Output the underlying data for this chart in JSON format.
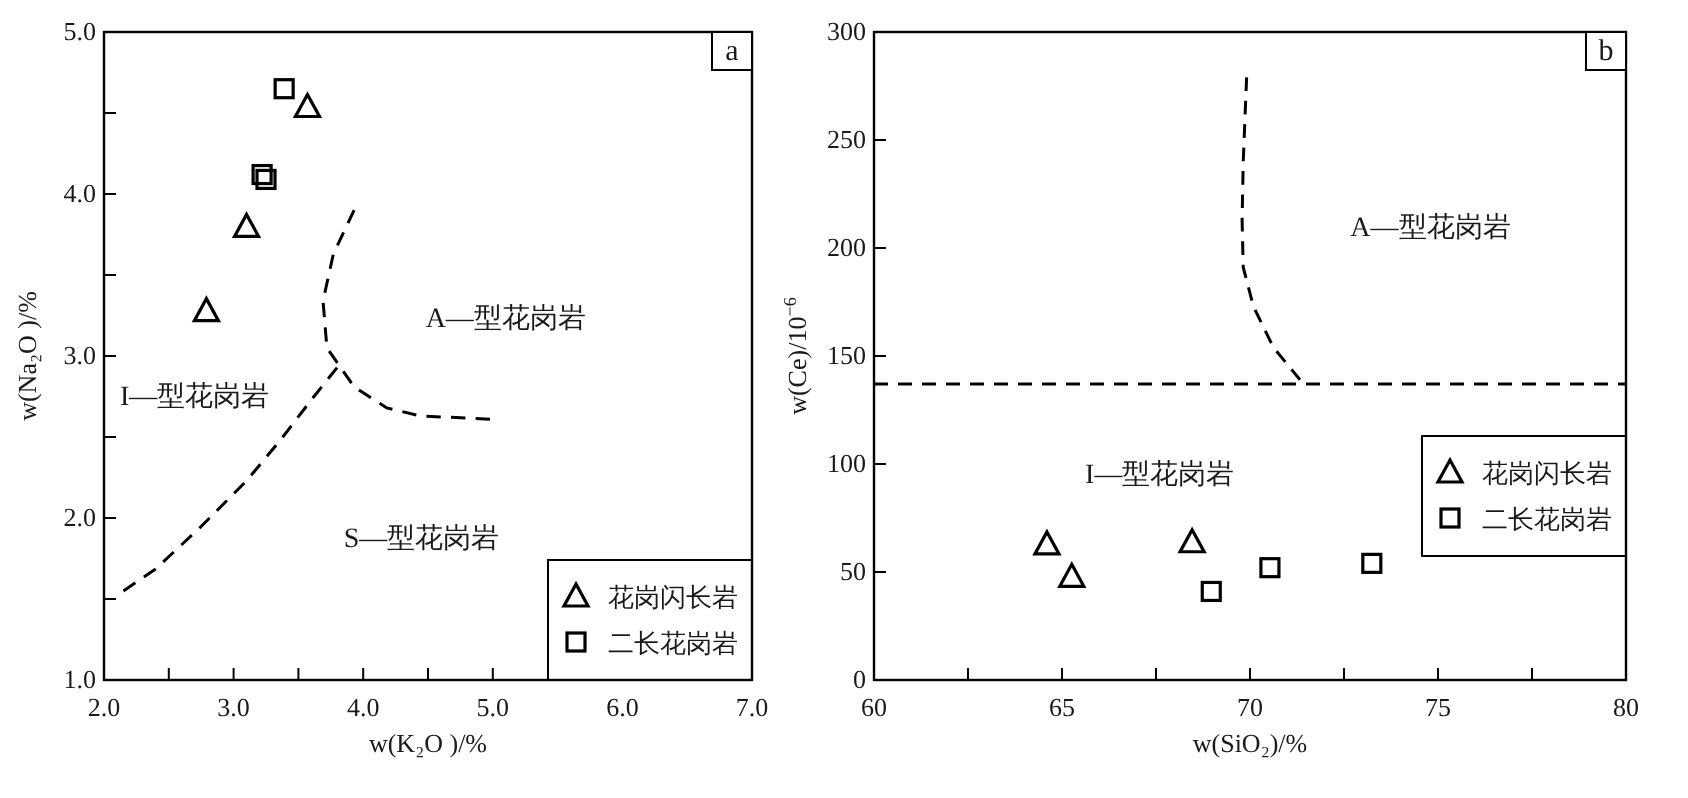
{
  "chart_data": [
    {
      "type": "scatter",
      "title": "a",
      "xlabel": "w(K₂O )/%",
      "ylabel": "w(Na₂O )/%",
      "xlim": [
        2.0,
        7.0
      ],
      "ylim": [
        1.0,
        5.0
      ],
      "xticks": [
        {
          "value": 2,
          "label": "2.0"
        },
        {
          "value": 2.5,
          "label": null
        },
        {
          "value": 3,
          "label": "3.0"
        },
        {
          "value": 3.5,
          "label": null
        },
        {
          "value": 4,
          "label": "4.0"
        },
        {
          "value": 4.5,
          "label": null
        },
        {
          "value": 5,
          "label": "5.0"
        },
        {
          "value": 5.5,
          "label": null
        },
        {
          "value": 6,
          "label": "6.0"
        },
        {
          "value": 6.5,
          "label": null
        },
        {
          "value": 7,
          "label": "7.0"
        }
      ],
      "yticks": [
        {
          "value": 1,
          "label": "1.0"
        },
        {
          "value": 1.5,
          "label": null
        },
        {
          "value": 2,
          "label": "2.0"
        },
        {
          "value": 2.5,
          "label": null
        },
        {
          "value": 3,
          "label": "3.0"
        },
        {
          "value": 3.5,
          "label": null
        },
        {
          "value": 4,
          "label": "4.0"
        },
        {
          "value": 4.5,
          "label": null
        },
        {
          "value": 5,
          "label": "5.0"
        }
      ],
      "legend": "bottom right",
      "series": [
        {
          "name": "花岗闪长岩",
          "type": "scatter",
          "marker": "triangle",
          "color": "#000000",
          "x": [
            2.79,
            3.1,
            3.57
          ],
          "values": [
            3.28,
            3.8,
            4.54
          ]
        },
        {
          "name": "二长花岗岩",
          "type": "scatter",
          "marker": "square",
          "color": "#000000",
          "x": [
            3.39,
            3.22,
            3.25
          ],
          "values": [
            4.65,
            4.12,
            4.09
          ]
        },
        {
          "type": "line",
          "line_style": "dashed",
          "color": "#000000",
          "x": [
            2.15,
            2.39,
            2.74,
            3.1,
            3.36,
            3.62,
            3.8
          ],
          "values": [
            1.55,
            1.68,
            1.94,
            2.23,
            2.48,
            2.75,
            2.93
          ]
        },
        {
          "type": "line",
          "line_style": "dashed",
          "color": "#000000",
          "x": [
            3.93,
            3.77,
            3.69,
            3.72,
            3.93,
            4.18,
            4.44,
            4.98
          ],
          "values": [
            3.9,
            3.63,
            3.34,
            3.05,
            2.81,
            2.68,
            2.63,
            2.61
          ]
        }
      ],
      "annotations": [
        "A—型花岗岩",
        "I—型花岗岩",
        "S—型花岗岩"
      ]
    },
    {
      "type": "scatter",
      "title": "b",
      "xlabel": "w(SiO₂)/%",
      "ylabel": "w(Ce)/10$^{−6}$",
      "xlim": [
        60,
        80
      ],
      "ylim": [
        0,
        300
      ],
      "xticks": [
        60,
        {
          "value": 62.5,
          "label": null
        },
        65,
        {
          "value": 67.5,
          "label": null
        },
        70,
        {
          "value": 72.5,
          "label": null
        },
        75,
        {
          "value": 77.5,
          "label": null
        },
        80
      ],
      "yticks": [
        0,
        50,
        100,
        150,
        200,
        250,
        300
      ],
      "legend": "right",
      "series": [
        {
          "name": "花岗闪长岩",
          "type": "scatter",
          "marker": "triangle",
          "color": "#000000",
          "x": [
            64.6,
            65.26,
            68.46
          ],
          "values": [
            63,
            48,
            64
          ]
        },
        {
          "name": "二长花岗岩",
          "type": "scatter",
          "marker": "square",
          "color": "#000000",
          "x": [
            68.97,
            70.53,
            73.24
          ],
          "values": [
            41,
            52,
            54
          ]
        },
        {
          "type": "line",
          "line_style": "dashed",
          "color": "#000000",
          "x": [
            69.91,
            69.82,
            69.79,
            69.82,
            70.09,
            70.62,
            71.33
          ],
          "values": [
            279,
            240,
            213,
            191,
            173,
            154,
            139
          ]
        }
      ],
      "ref_lines": [
        {
          "axis": "y",
          "value": 137,
          "line_style": "dashed",
          "color": "#000000"
        }
      ],
      "annotations": [
        "A—型花岗岩",
        "I—型花岗岩"
      ]
    }
  ]
}
